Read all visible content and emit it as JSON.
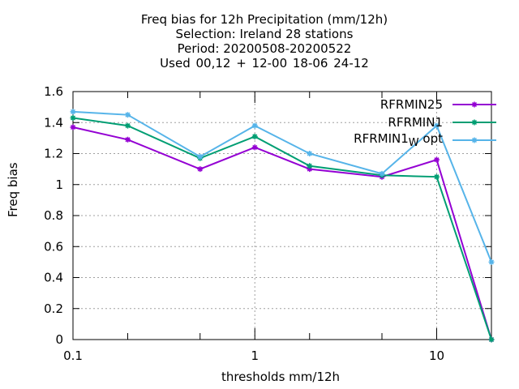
{
  "chart_data": {
    "type": "line",
    "title_lines": [
      "Freq bias  for 12h Precipitation (mm/12h)",
      "Selection: Ireland      28 stations",
      "Period: 20200508-20200522",
      "Used  00,12  + 12-00 18-06 24-12"
    ],
    "xlabel": "thresholds mm/12h",
    "ylabel": "Freq bias",
    "x_scale": "log",
    "xlim": [
      0.1,
      20
    ],
    "ylim": [
      0,
      1.6
    ],
    "x_ticks": [
      {
        "value": 0.1,
        "label": "0.1"
      },
      {
        "value": 1,
        "label": "1"
      },
      {
        "value": 10,
        "label": "10"
      }
    ],
    "x_minor_ticks": [
      0.2,
      0.5,
      2,
      5
    ],
    "y_ticks": [
      {
        "value": 0,
        "label": "0"
      },
      {
        "value": 0.2,
        "label": "0.2"
      },
      {
        "value": 0.4,
        "label": "0.4"
      },
      {
        "value": 0.6,
        "label": "0.6"
      },
      {
        "value": 0.8,
        "label": "0.8"
      },
      {
        "value": 1,
        "label": "1"
      },
      {
        "value": 1.2,
        "label": "1.2"
      },
      {
        "value": 1.4,
        "label": "1.4"
      },
      {
        "value": 1.6,
        "label": "1.6"
      }
    ],
    "grid": true,
    "legend_position": "top-right",
    "x": [
      0.1,
      0.2,
      0.5,
      1,
      2,
      5,
      10,
      20
    ],
    "series": [
      {
        "name": "RFRMIN25",
        "color": "#9400d3",
        "values": [
          1.37,
          1.29,
          1.1,
          1.24,
          1.1,
          1.05,
          1.16,
          0.0
        ]
      },
      {
        "name": "RFRMIN1",
        "color": "#009e73",
        "values": [
          1.43,
          1.38,
          1.17,
          1.31,
          1.12,
          1.06,
          1.05,
          0.0
        ]
      },
      {
        "name": "RFRMIN1",
        "name_subscript": "W",
        "name_suffix": " opt",
        "color": "#56b4e9",
        "values": [
          1.47,
          1.45,
          1.18,
          1.38,
          1.2,
          1.07,
          1.38,
          0.5
        ]
      }
    ]
  }
}
